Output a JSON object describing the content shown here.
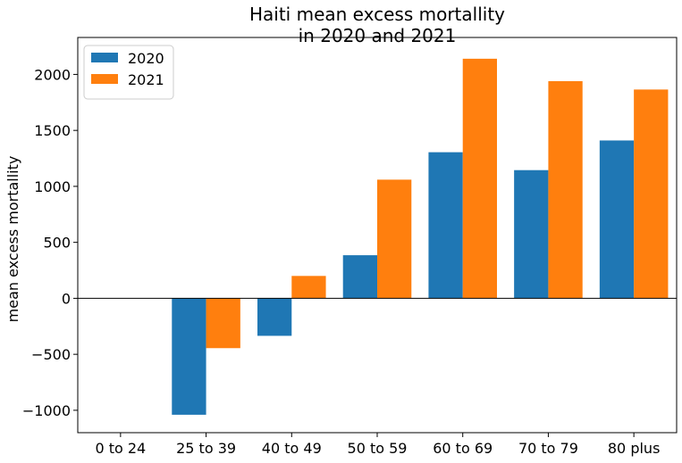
{
  "chart_data": {
    "type": "bar",
    "title_lines": [
      "Haiti mean excess mortallity",
      "in 2020 and 2021"
    ],
    "xlabel": "",
    "ylabel": "mean excess mortallity",
    "categories": [
      "0 to 24",
      "25 to 39",
      "40 to 49",
      "50 to 59",
      "60 to 69",
      "70 to 79",
      "80 plus"
    ],
    "series": [
      {
        "name": "2020",
        "color": "#1f77b4",
        "values": [
          0,
          -1040,
          -335,
          385,
          1305,
          1145,
          1410
        ]
      },
      {
        "name": "2021",
        "color": "#ff7f0e",
        "values": [
          0,
          -445,
          200,
          1060,
          2140,
          1940,
          1865
        ]
      }
    ],
    "yticks": [
      -1000,
      -500,
      0,
      500,
      1000,
      1500,
      2000
    ],
    "ytick_labels": [
      "−1000",
      "−500",
      "0",
      "500",
      "1000",
      "1500",
      "2000"
    ],
    "ylim": [
      -1200,
      2330
    ],
    "grid": false,
    "zero_line": true,
    "legend_position": "top-left"
  }
}
